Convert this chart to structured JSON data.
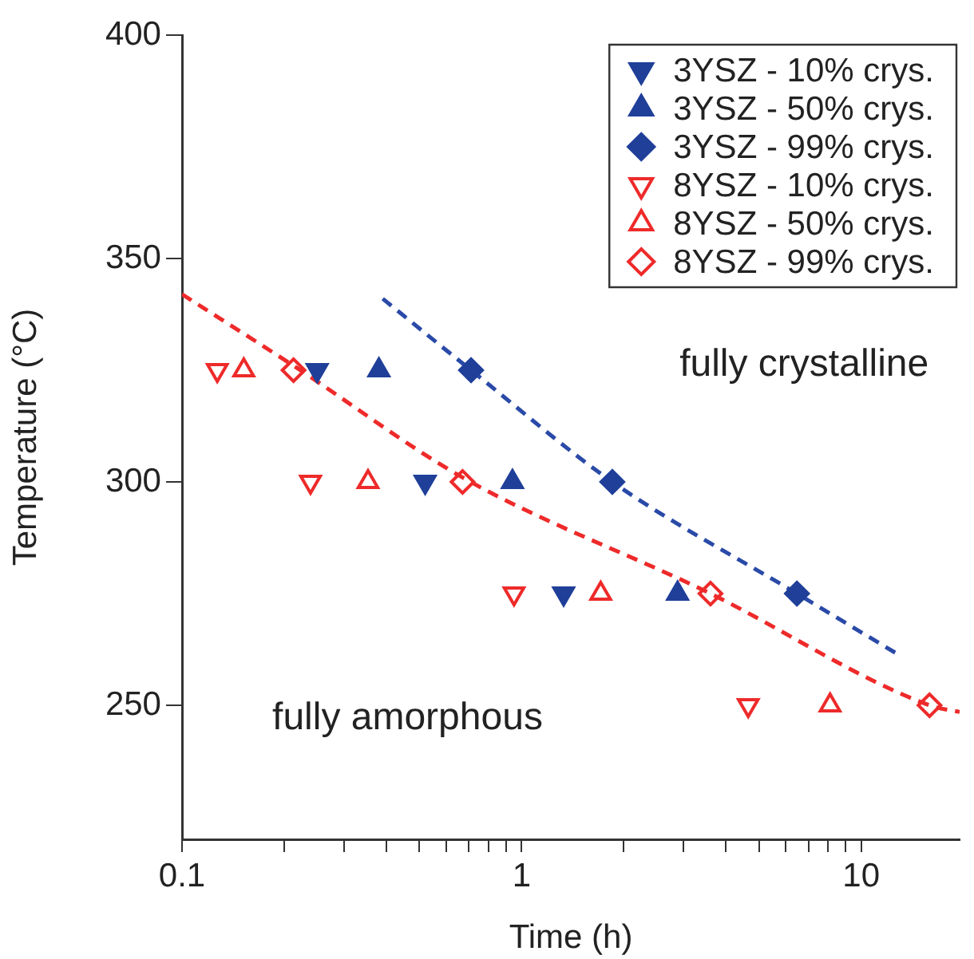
{
  "chart_data": {
    "type": "scatter",
    "xlabel": "Time (h)",
    "ylabel": "Temperature (°C)",
    "log": "x",
    "xlim": [
      0.1,
      19.5
    ],
    "ylim": [
      220,
      400
    ],
    "xticks": [
      0.1,
      {
        "value": 0.2,
        "label": null
      },
      {
        "value": 0.3,
        "label": null
      },
      {
        "value": 0.4,
        "label": null
      },
      {
        "value": 0.5,
        "label": null
      },
      {
        "value": 0.6,
        "label": null
      },
      {
        "value": 0.7,
        "label": null
      },
      {
        "value": 0.8,
        "label": null
      },
      {
        "value": 0.9,
        "label": null
      },
      1,
      {
        "value": 2,
        "label": null
      },
      {
        "value": 3,
        "label": null
      },
      {
        "value": 4,
        "label": null
      },
      {
        "value": 5,
        "label": null
      },
      {
        "value": 6,
        "label": null
      },
      {
        "value": 7,
        "label": null
      },
      {
        "value": 8,
        "label": null
      },
      {
        "value": 9,
        "label": null
      },
      10
    ],
    "yticks": [
      250,
      300,
      350,
      400
    ],
    "grid": false,
    "legend": "top right",
    "series": [
      {
        "name": "3YSZ - 10% crys.",
        "color": "#1f3f99",
        "marker": "triangle-down",
        "x": [
          0.25,
          0.52,
          1.33
        ],
        "values": [
          325,
          300,
          275
        ]
      },
      {
        "name": "3YSZ - 50% crys.",
        "color": "#1f3f99",
        "marker": "triangle",
        "x": [
          0.38,
          0.94,
          2.88
        ],
        "values": [
          325,
          300,
          275
        ]
      },
      {
        "name": "3YSZ - 99% crys.",
        "color": "#1f3f99",
        "marker": "diamond",
        "x": [
          0.71,
          1.85,
          6.47
        ],
        "values": [
          325,
          300,
          275
        ]
      },
      {
        "name": "8YSZ - 10% crys.",
        "color": "#ee2a2a",
        "marker": "triangle-down",
        "x": [
          0.127,
          0.239,
          0.95,
          4.65
        ],
        "values": [
          325,
          300,
          275,
          250
        ]
      },
      {
        "name": "8YSZ - 50% crys.",
        "color": "#ee2a2a",
        "marker": "triangle",
        "x": [
          0.152,
          0.353,
          1.71,
          8.1
        ],
        "values": [
          325,
          300,
          275,
          250
        ]
      },
      {
        "name": "8YSZ - 99% crys.",
        "color": "#ee2a2a",
        "marker": "diamond",
        "x": [
          0.213,
          0.67,
          3.6,
          15.9
        ],
        "values": [
          325,
          300,
          275,
          250
        ]
      },
      {
        "type": "line",
        "color": "#2a4aa8",
        "line_style": "dashed",
        "marker": "none",
        "x": [
          0.39,
          0.71,
          1.85,
          6.47,
          13.1
        ],
        "values": [
          341,
          325,
          300,
          275,
          261
        ]
      },
      {
        "type": "line",
        "color": "#ee2a2a",
        "line_style": "dashed",
        "marker": "none",
        "x": [
          0.1,
          0.213,
          0.67,
          3.6,
          15.9,
          19.5
        ],
        "values": [
          342,
          326,
          301,
          275,
          250,
          248.5
        ]
      }
    ],
    "annotations": [
      "fully crystalline",
      "fully amorphous"
    ]
  }
}
